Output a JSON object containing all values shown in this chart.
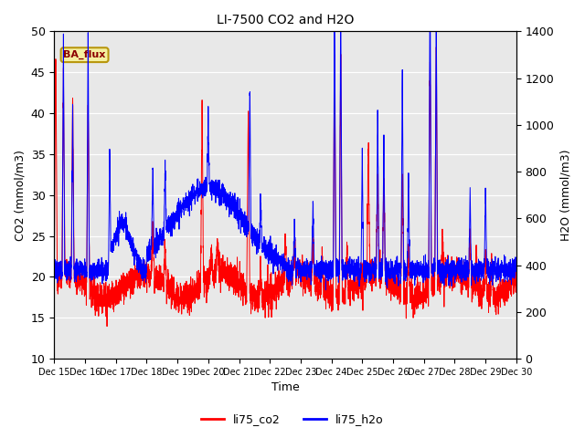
{
  "title": "LI-7500 CO2 and H2O",
  "xlabel": "Time",
  "ylabel_left": "CO2 (mmol/m3)",
  "ylabel_right": "H2O (mmol/m3)",
  "ylim_left": [
    10,
    50
  ],
  "ylim_right": [
    0,
    1400
  ],
  "annotation_text": "BA_flux",
  "annotation_box_facecolor": "#f5f0a0",
  "annotation_box_edgecolor": "#b8960c",
  "annotation_text_color": "#8b0000",
  "line_co2_color": "red",
  "line_h2o_color": "blue",
  "background_color": "#e8e8e8",
  "legend_labels": [
    "li75_co2",
    "li75_h2o"
  ],
  "x_tick_labels": [
    "Dec 15",
    "Dec 16",
    "Dec 17",
    "Dec 18",
    "Dec 19",
    "Dec 20",
    "Dec 21",
    "Dec 22",
    "Dec 23",
    "Dec 24",
    "Dec 25",
    "Dec 26",
    "Dec 27",
    "Dec 28",
    "Dec 29",
    "Dec 30"
  ],
  "num_points": 4000,
  "figsize": [
    6.4,
    4.8
  ],
  "dpi": 100
}
